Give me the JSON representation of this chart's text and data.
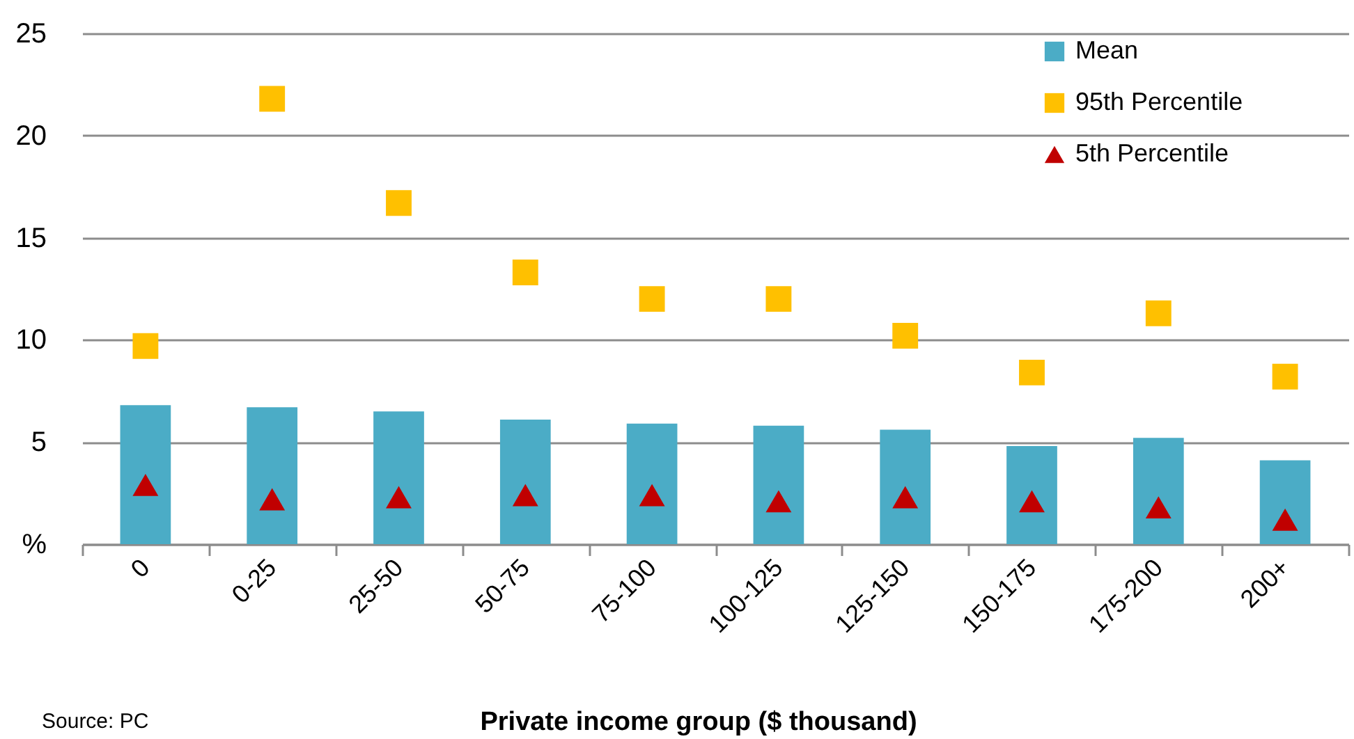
{
  "chart_data": {
    "type": "bar",
    "xlabel": "Private income group ($ thousand)",
    "annotations": [
      "Source: PC"
    ],
    "categories": [
      "0",
      "0-25",
      "25-50",
      "50-75",
      "75-100",
      "100-125",
      "125-150",
      "150-175",
      "175-200",
      "200+"
    ],
    "series": [
      {
        "name": "Mean",
        "color": "#4bacc6",
        "values": [
          6.8,
          6.7,
          6.5,
          6.1,
          5.9,
          5.8,
          5.6,
          4.8,
          5.2,
          4.1
        ]
      },
      {
        "name": "95th Percentile",
        "type": "scatter",
        "marker": "square",
        "color": "#ffc000",
        "values": [
          9.7,
          21.8,
          16.7,
          13.3,
          12.0,
          12.0,
          10.2,
          8.4,
          11.3,
          8.2
        ]
      },
      {
        "name": "5th Percentile",
        "type": "scatter",
        "marker": "triangle",
        "color": "#c00000",
        "values": [
          2.9,
          2.2,
          2.3,
          2.4,
          2.4,
          2.1,
          2.3,
          2.1,
          1.8,
          1.2
        ]
      }
    ],
    "ylim": [
      0,
      25
    ],
    "yticks": [
      {
        "value": 0,
        "label": "%"
      },
      5,
      10,
      15,
      20,
      25
    ],
    "grid": "y",
    "legend": "top right"
  }
}
